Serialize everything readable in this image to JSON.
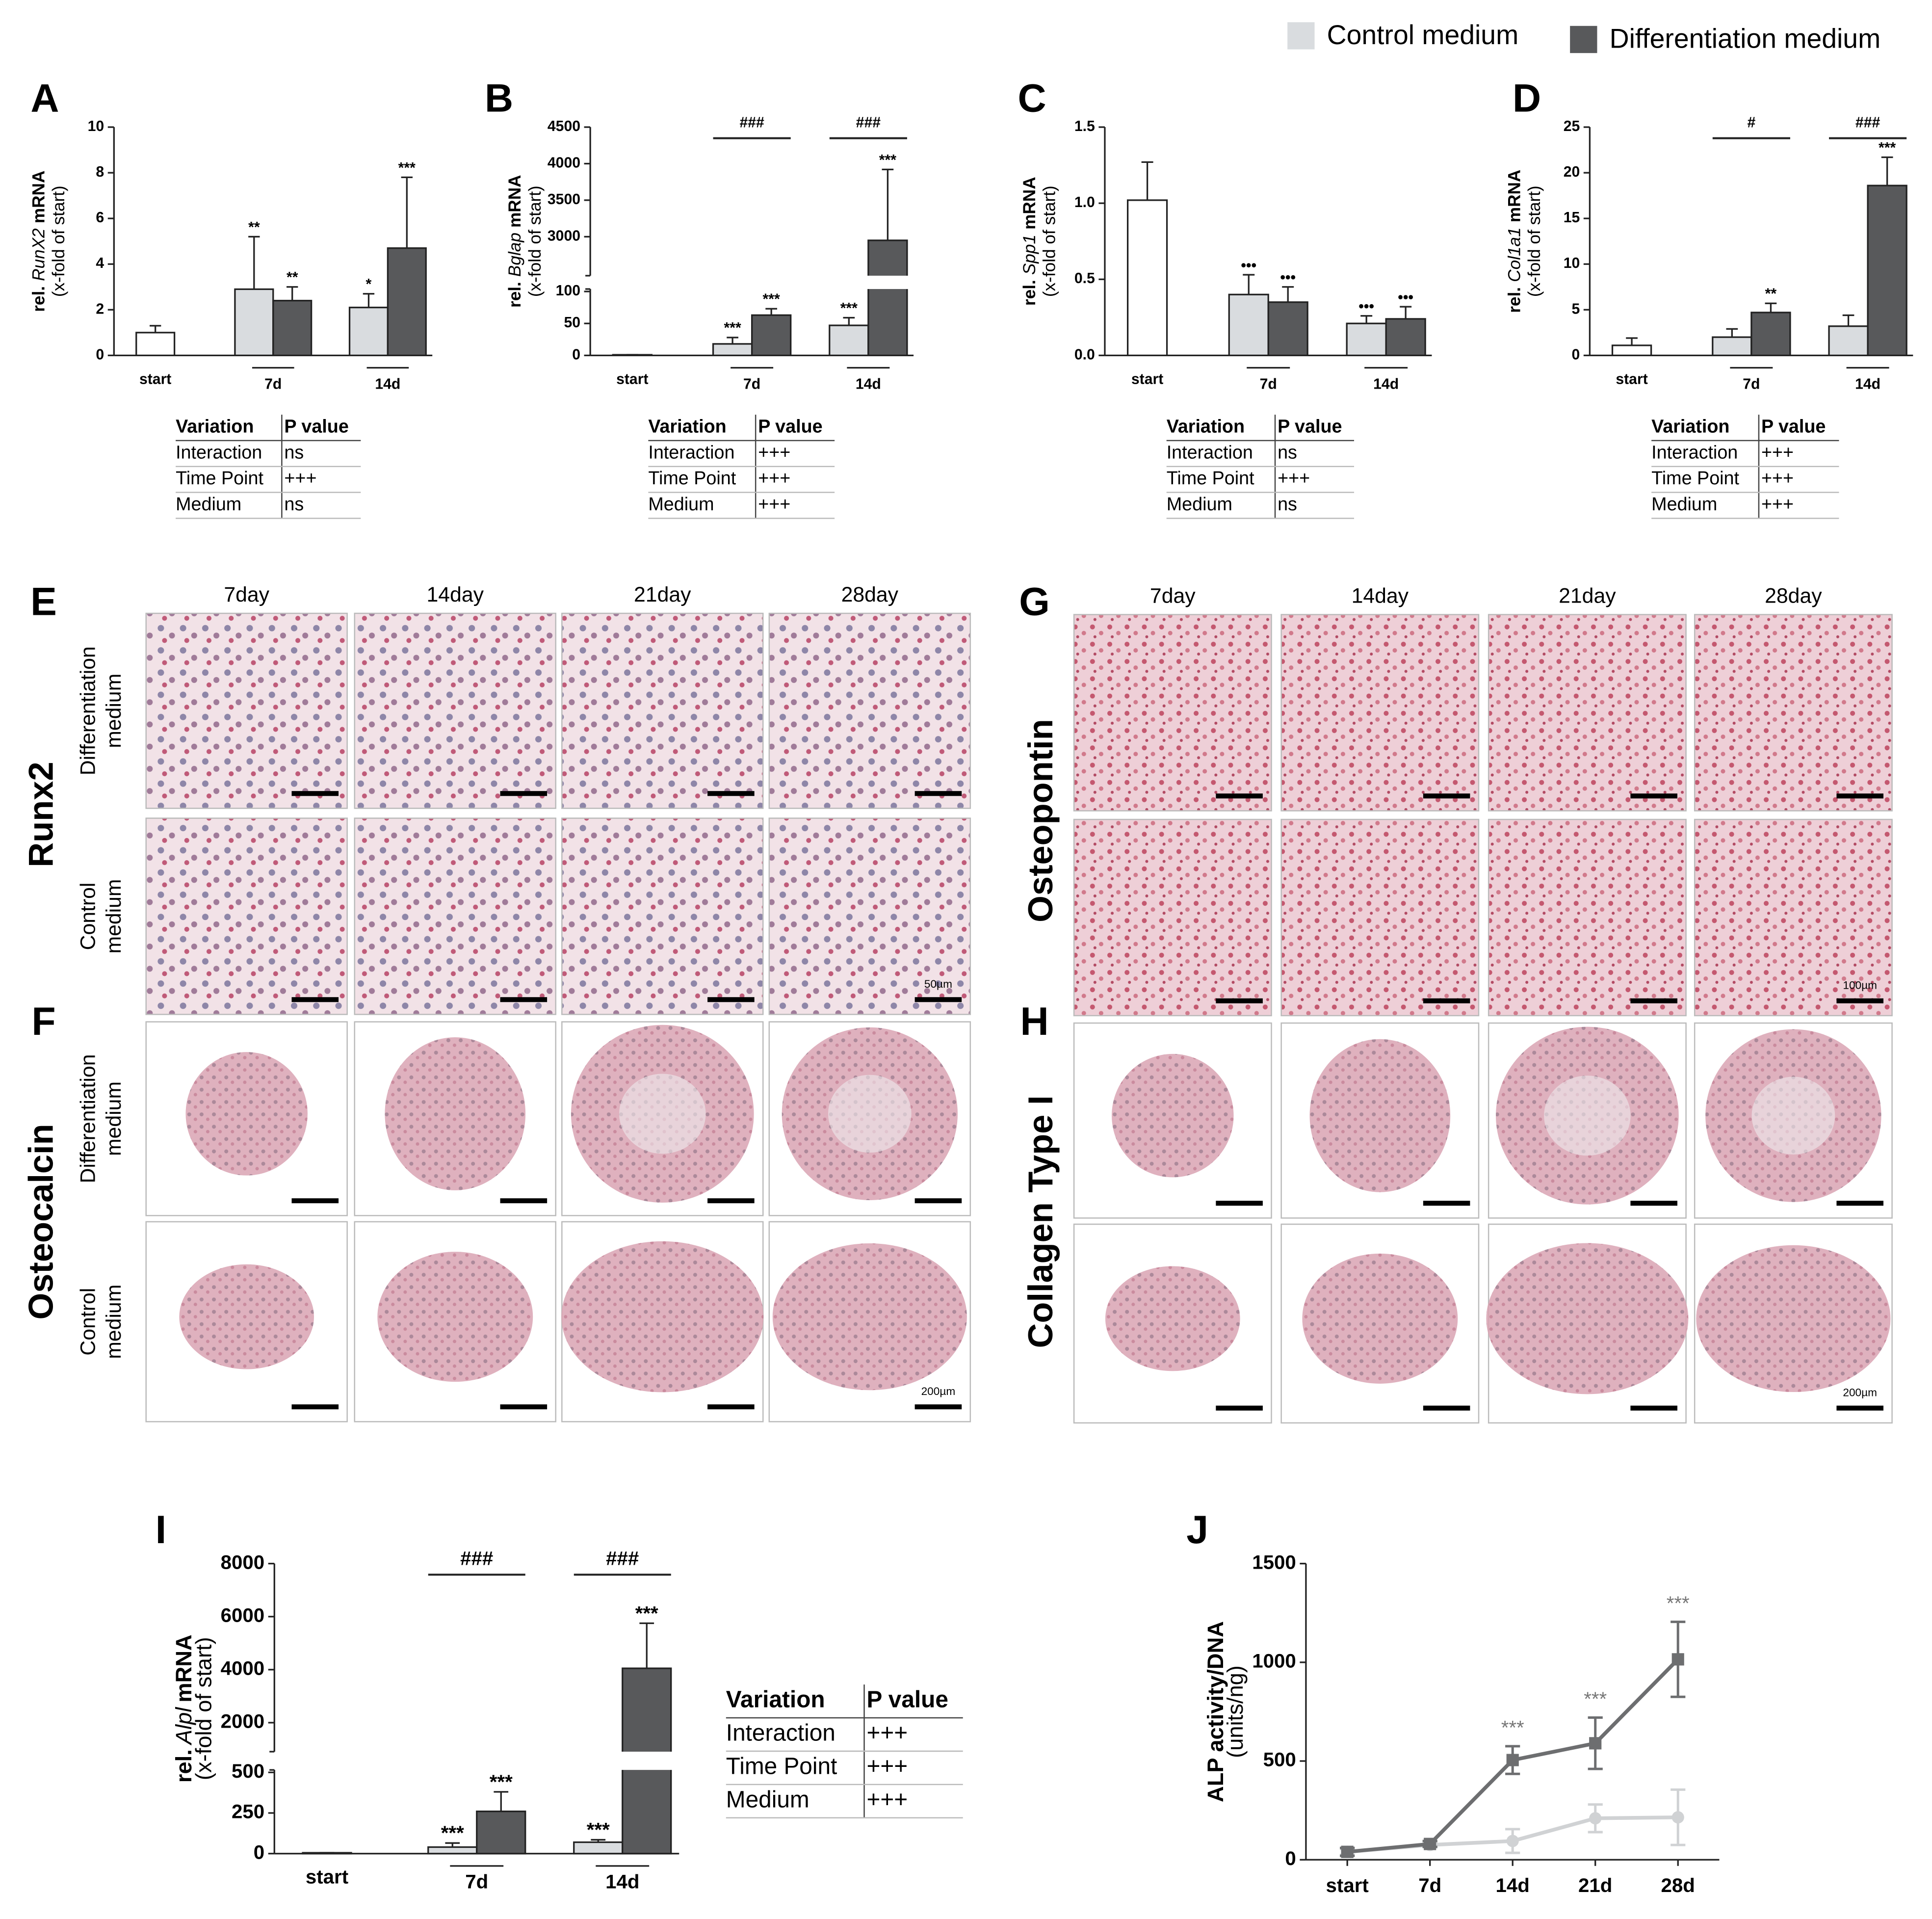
{
  "chart_data": [
    {
      "panel": "A",
      "type": "bar",
      "ylabel_prefix": "rel.",
      "ylabel_gene": "RunX2",
      "ylabel_suffix": "mRNA",
      "ylabel_note": "(x-fold of start)",
      "categories": [
        "start",
        "7d",
        "14d"
      ],
      "ylim": [
        0,
        10
      ],
      "yticks": [
        0,
        2,
        4,
        6,
        8,
        10
      ],
      "series": [
        {
          "color": "#ffffff",
          "values": [
            1.0,
            null,
            null
          ],
          "errors": [
            0.3,
            null,
            null
          ],
          "annotations": [
            null,
            null,
            null
          ]
        },
        {
          "name": "Control medium",
          "color": "#d9dcdf",
          "values": [
            null,
            2.9,
            2.1
          ],
          "errors": [
            null,
            2.3,
            0.6
          ],
          "annotations": [
            null,
            "**",
            "*"
          ]
        },
        {
          "name": "Differentiation medium",
          "color": "#58595b",
          "values": [
            null,
            2.4,
            4.7
          ],
          "errors": [
            null,
            0.6,
            3.1
          ],
          "annotations": [
            null,
            "**",
            "***"
          ]
        }
      ],
      "stats_table": {
        "header": [
          "Variation",
          "P value"
        ],
        "rows": [
          [
            "Interaction",
            "ns"
          ],
          [
            "Time Point",
            "+++"
          ],
          [
            "Medium",
            "ns"
          ]
        ]
      }
    },
    {
      "panel": "B",
      "type": "bar",
      "ylabel_prefix": "rel.",
      "ylabel_gene": "Bglap",
      "ylabel_suffix": "mRNA",
      "ylabel_note": "(x-fold of start)",
      "categories": [
        "start",
        "7d",
        "14d"
      ],
      "ylim": [
        0,
        4500
      ],
      "axis_break": [
        100,
        2500
      ],
      "yticks": [
        0,
        50,
        100,
        3000,
        3500,
        4000,
        4500
      ],
      "brackets": [
        null,
        "###",
        "###"
      ],
      "series": [
        {
          "color": "#ffffff",
          "values": [
            1,
            null,
            null
          ],
          "errors": [
            0,
            null,
            null
          ],
          "annotations": [
            null,
            null,
            null
          ]
        },
        {
          "name": "Control medium",
          "color": "#d9dcdf",
          "values": [
            null,
            18,
            47
          ],
          "errors": [
            null,
            10,
            12
          ],
          "annotations": [
            null,
            "***",
            "***"
          ]
        },
        {
          "name": "Differentiation medium",
          "color": "#58595b",
          "values": [
            null,
            63,
            2950
          ],
          "errors": [
            null,
            10,
            970
          ],
          "annotations": [
            null,
            "***",
            "***"
          ]
        }
      ],
      "stats_table": {
        "header": [
          "Variation",
          "P value"
        ],
        "rows": [
          [
            "Interaction",
            "+++"
          ],
          [
            "Time Point",
            "+++"
          ],
          [
            "Medium",
            "+++"
          ]
        ]
      }
    },
    {
      "panel": "C",
      "type": "bar",
      "ylabel_prefix": "rel.",
      "ylabel_gene": "Spp1",
      "ylabel_suffix": "mRNA",
      "ylabel_note": "(x-fold of start)",
      "categories": [
        "start",
        "7d",
        "14d"
      ],
      "ylim": [
        0,
        1.5
      ],
      "yticks": [
        {
          "value": 0,
          "label": "0.0"
        },
        0.5,
        {
          "value": 1,
          "label": "1.0"
        },
        1.5
      ],
      "series": [
        {
          "color": "#ffffff",
          "values": [
            1.02,
            null,
            null
          ],
          "errors": [
            0.25,
            null,
            null
          ],
          "annotations": [
            null,
            null,
            null
          ]
        },
        {
          "name": "Control medium",
          "color": "#d9dcdf",
          "values": [
            null,
            0.4,
            0.21
          ],
          "errors": [
            null,
            0.13,
            0.05
          ],
          "annotations": [
            null,
            "•••",
            "•••"
          ]
        },
        {
          "name": "Differentiation medium",
          "color": "#58595b",
          "values": [
            null,
            0.35,
            0.24
          ],
          "errors": [
            null,
            0.1,
            0.08
          ],
          "annotations": [
            null,
            "•••",
            "•••"
          ]
        }
      ],
      "stats_table": {
        "header": [
          "Variation",
          "P value"
        ],
        "rows": [
          [
            "Interaction",
            "ns"
          ],
          [
            "Time Point",
            "+++"
          ],
          [
            "Medium",
            "ns"
          ]
        ]
      }
    },
    {
      "panel": "D",
      "type": "bar",
      "ylabel_prefix": "rel.",
      "ylabel_gene": "Col1a1",
      "ylabel_suffix": "mRNA",
      "ylabel_note": "(x-fold of start)",
      "categories": [
        "start",
        "7d",
        "14d"
      ],
      "ylim": [
        0,
        25
      ],
      "yticks": [
        0,
        5,
        10,
        15,
        20,
        25
      ],
      "brackets": [
        null,
        "#",
        "###"
      ],
      "series": [
        {
          "color": "#ffffff",
          "values": [
            1.1,
            null,
            null
          ],
          "errors": [
            0.8,
            null,
            null
          ],
          "annotations": [
            null,
            null,
            null
          ]
        },
        {
          "name": "Control medium",
          "color": "#d9dcdf",
          "values": [
            null,
            2.0,
            3.2
          ],
          "errors": [
            null,
            0.9,
            1.2
          ],
          "annotations": [
            null,
            null,
            null
          ]
        },
        {
          "name": "Differentiation medium",
          "color": "#58595b",
          "values": [
            null,
            4.7,
            18.6
          ],
          "errors": [
            null,
            1.0,
            3.1
          ],
          "annotations": [
            null,
            "**",
            "***"
          ]
        }
      ],
      "stats_table": {
        "header": [
          "Variation",
          "P value"
        ],
        "rows": [
          [
            "Interaction",
            "+++"
          ],
          [
            "Time Point",
            "+++"
          ],
          [
            "Medium",
            "+++"
          ]
        ]
      }
    },
    {
      "panel": "I",
      "type": "bar",
      "ylabel_prefix": "rel.",
      "ylabel_gene": "Alpl",
      "ylabel_suffix": "mRNA",
      "ylabel_note": "(x-fold of start)",
      "categories": [
        "start",
        "7d",
        "14d"
      ],
      "ylim": [
        0,
        8000
      ],
      "axis_break": [
        500,
        1000
      ],
      "yticks": [
        0,
        250,
        500,
        2000,
        4000,
        6000,
        8000
      ],
      "brackets": [
        null,
        "###",
        "###"
      ],
      "series": [
        {
          "color": "#ffffff",
          "values": [
            5,
            null,
            null
          ],
          "errors": [
            0,
            null,
            null
          ],
          "annotations": [
            null,
            null,
            null
          ]
        },
        {
          "name": "Control medium",
          "color": "#d9dcdf",
          "values": [
            null,
            40,
            70
          ],
          "errors": [
            null,
            25,
            15
          ],
          "annotations": [
            null,
            "***",
            "***"
          ]
        },
        {
          "name": "Differentiation medium",
          "color": "#58595b",
          "values": [
            null,
            260,
            4050
          ],
          "errors": [
            null,
            120,
            1700
          ],
          "annotations": [
            null,
            "***",
            "***"
          ]
        }
      ],
      "stats_table": {
        "header": [
          "Variation",
          "P value"
        ],
        "rows": [
          [
            "Interaction",
            "+++"
          ],
          [
            "Time Point",
            "+++"
          ],
          [
            "Medium",
            "+++"
          ]
        ]
      }
    },
    {
      "panel": "J",
      "type": "line",
      "ylabel_prefix": "ALP activity/DNA",
      "ylabel_note": "(units/ng)",
      "categories": [
        "start",
        "7d",
        "14d",
        "21d",
        "28d"
      ],
      "ylim": [
        0,
        1500
      ],
      "yticks": [
        0,
        500,
        1000,
        1500
      ],
      "series": [
        {
          "name": "Control medium",
          "color": "#d0d2d4",
          "marker": "circle",
          "values": [
            40,
            75,
            95,
            210,
            215
          ],
          "errors": [
            15,
            10,
            60,
            70,
            140
          ],
          "annotations": [
            null,
            null,
            null,
            null,
            null
          ]
        },
        {
          "name": "Differentiation medium",
          "color": "#6d6e70",
          "marker": "square",
          "values": [
            40,
            80,
            505,
            590,
            1015
          ],
          "errors": [
            20,
            15,
            70,
            130,
            190
          ],
          "annotations": [
            null,
            null,
            "***",
            "***",
            "***"
          ]
        }
      ]
    }
  ],
  "image_panels": [
    {
      "label": "E",
      "stain": "Runx2",
      "columns": [
        "7day",
        "14day",
        "21day",
        "28day"
      ],
      "rows": [
        [
          "Differentiation",
          "medium"
        ],
        [
          "Control",
          "medium"
        ]
      ],
      "scale_label": "50µm"
    },
    {
      "label": "F",
      "stain": "Osteocalcin",
      "rows": [
        [
          "Differentiation",
          "medium"
        ],
        [
          "Control",
          "medium"
        ]
      ],
      "scale_label": "200µm"
    },
    {
      "label": "G",
      "stain": "Osteopontin",
      "columns": [
        "7day",
        "14day",
        "21day",
        "28day"
      ],
      "scale_label": "100µm"
    },
    {
      "label": "H",
      "stain": "Collagen Type I",
      "scale_label": "200µm"
    }
  ]
}
